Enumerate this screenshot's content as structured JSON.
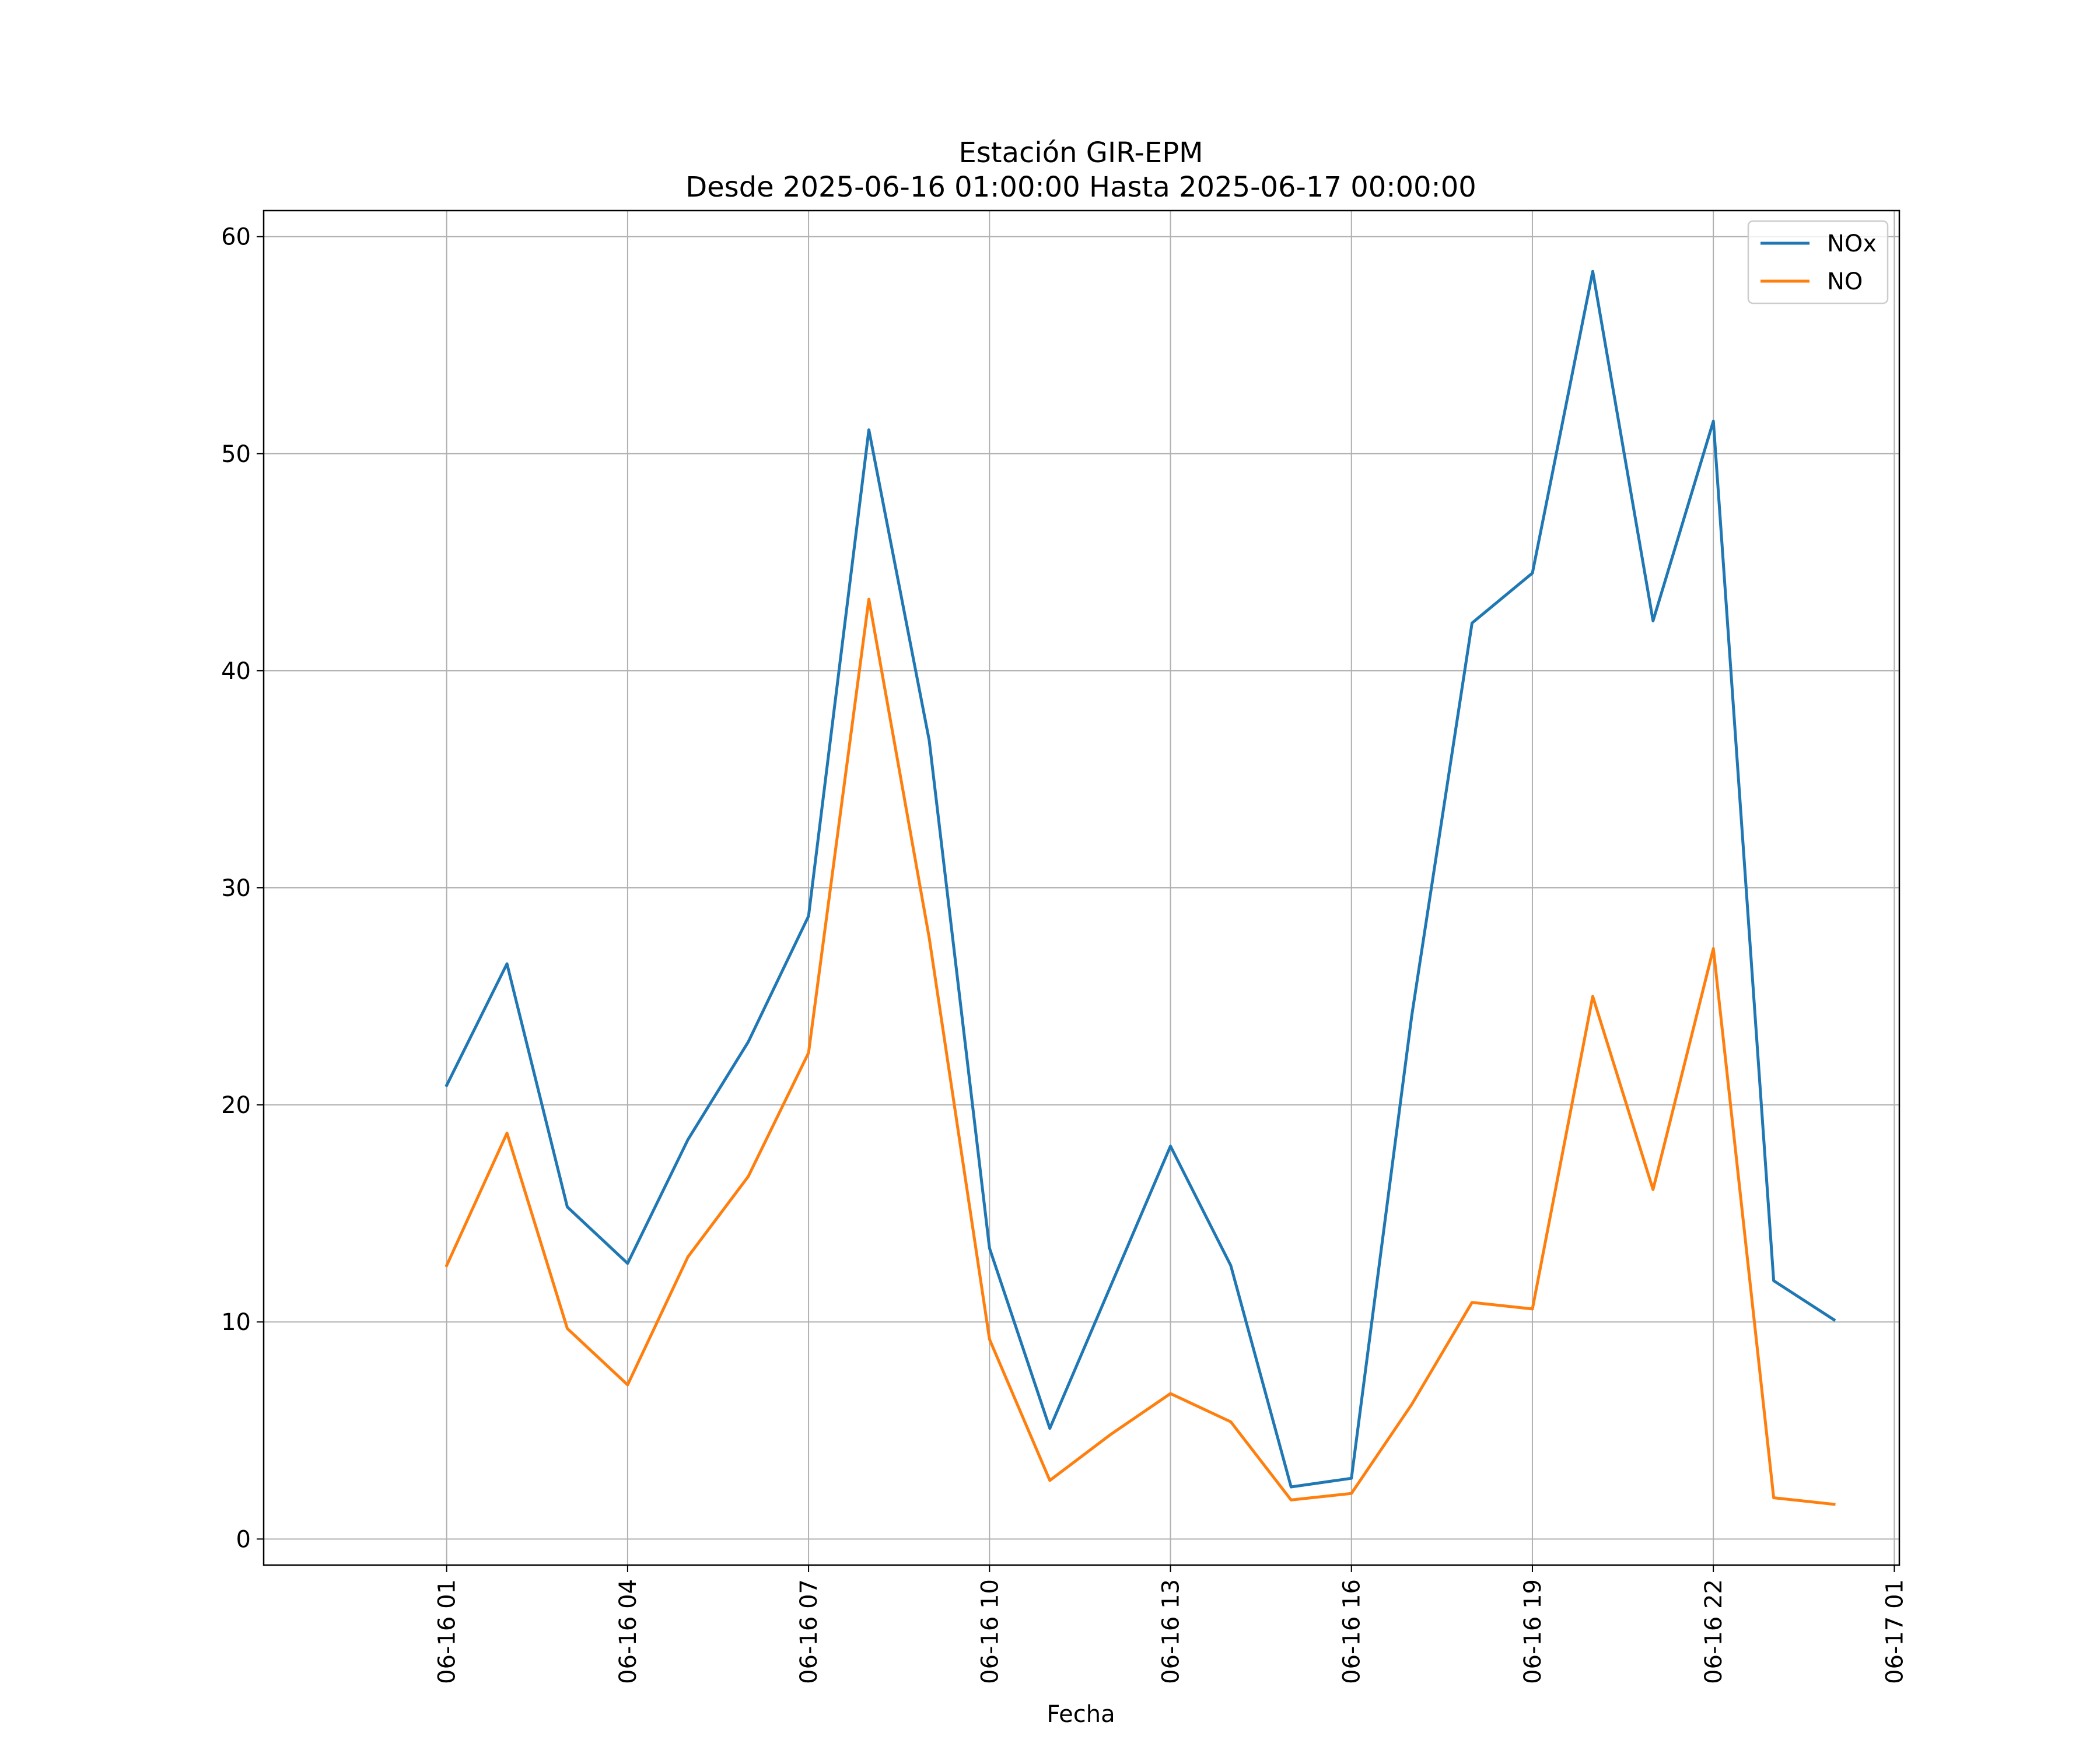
{
  "chart_data": {
    "type": "line",
    "title": "Estación GIR-EPM",
    "subtitle": "Desde 2025-06-16 01:00:00 Hasta 2025-06-17 00:00:00",
    "xlabel": "Fecha",
    "ylabel": "",
    "x": [
      "2025-06-16 01:00",
      "2025-06-16 02:00",
      "2025-06-16 03:00",
      "2025-06-16 04:00",
      "2025-06-16 05:00",
      "2025-06-16 06:00",
      "2025-06-16 07:00",
      "2025-06-16 08:00",
      "2025-06-16 09:00",
      "2025-06-16 10:00",
      "2025-06-16 11:00",
      "2025-06-16 12:00",
      "2025-06-16 13:00",
      "2025-06-16 14:00",
      "2025-06-16 15:00",
      "2025-06-16 16:00",
      "2025-06-16 17:00",
      "2025-06-16 18:00",
      "2025-06-16 19:00",
      "2025-06-16 20:00",
      "2025-06-16 21:00",
      "2025-06-16 22:00",
      "2025-06-16 23:00",
      "2025-06-17 00:00"
    ],
    "series": [
      {
        "name": "NOx",
        "color": "#1f77b4",
        "values": [
          20.9,
          26.5,
          15.3,
          12.7,
          18.4,
          22.9,
          28.7,
          51.1,
          36.8,
          13.4,
          5.1,
          11.6,
          18.1,
          12.6,
          2.4,
          2.8,
          24.1,
          42.2,
          44.5,
          58.4,
          42.3,
          51.5,
          11.9,
          10.1
        ]
      },
      {
        "name": "NO",
        "color": "#ff7f0e",
        "values": [
          12.6,
          18.7,
          9.7,
          7.1,
          13.0,
          16.7,
          22.4,
          43.3,
          27.7,
          9.2,
          2.7,
          4.8,
          6.7,
          5.4,
          1.8,
          2.1,
          6.2,
          10.9,
          10.6,
          25.0,
          16.1,
          27.2,
          1.9,
          1.6
        ]
      }
    ],
    "xticks": [
      "06-16 01",
      "06-16 04",
      "06-16 07",
      "06-16 10",
      "06-16 13",
      "06-16 16",
      "06-16 19",
      "06-16 22",
      "06-17 01"
    ],
    "xtick_times": [
      "2025-06-16 01:00",
      "2025-06-16 04:00",
      "2025-06-16 07:00",
      "2025-06-16 10:00",
      "2025-06-16 13:00",
      "2025-06-16 16:00",
      "2025-06-16 19:00",
      "2025-06-16 22:00",
      "2025-06-17 01:00"
    ],
    "xlim": [
      "2025-06-15 21:58",
      "2025-06-17 01:05"
    ],
    "yticks": [
      0,
      10,
      20,
      30,
      40,
      50,
      60
    ],
    "ylim": [
      -1.2,
      61.2
    ],
    "grid": true,
    "legend": "top-right"
  }
}
